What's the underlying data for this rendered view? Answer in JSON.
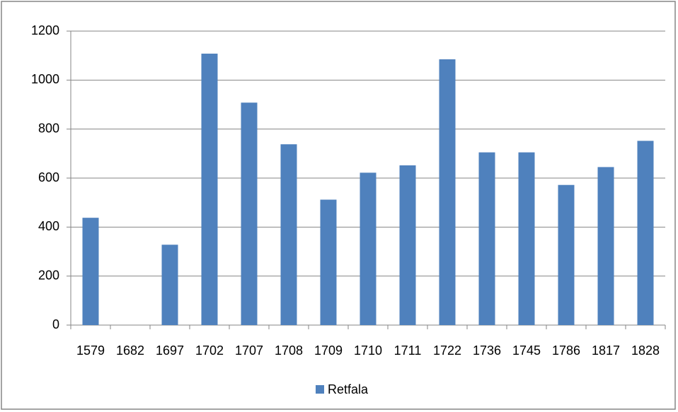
{
  "chart_data": {
    "type": "bar",
    "categories": [
      "1579",
      "1682",
      "1697",
      "1702",
      "1707",
      "1708",
      "1709",
      "1710",
      "1711",
      "1722",
      "1736",
      "1745",
      "1786",
      "1817",
      "1828"
    ],
    "series": [
      {
        "name": "Retfala",
        "color": "#4f81bd",
        "values": [
          438,
          null,
          328,
          1108,
          908,
          738,
          512,
          622,
          652,
          1085,
          705,
          705,
          572,
          645,
          752
        ]
      }
    ],
    "ylim": [
      0,
      1200
    ],
    "yticks": [
      0,
      200,
      400,
      600,
      800,
      1000,
      1200
    ],
    "grid": true,
    "legend": "bottom"
  }
}
